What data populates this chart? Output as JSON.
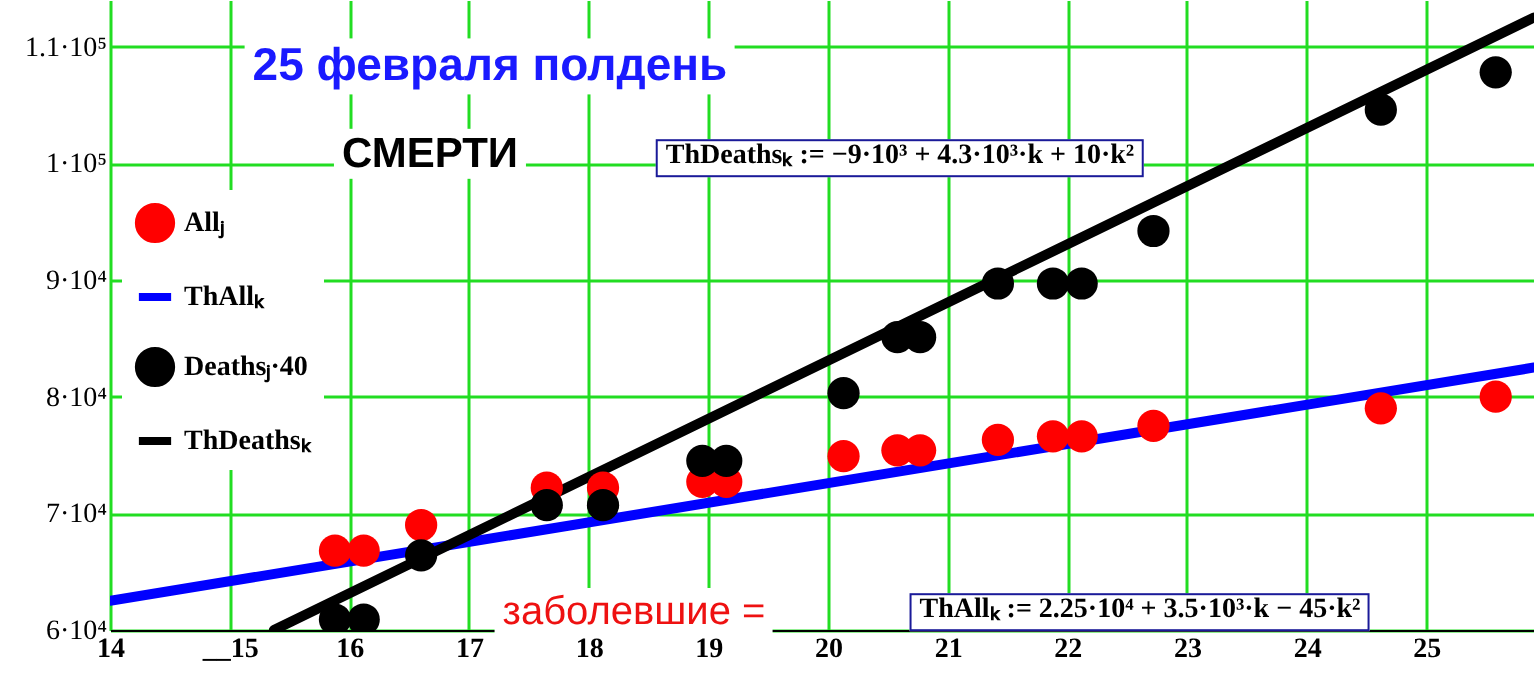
{
  "chart_data": {
    "type": "scatter",
    "title": "25 февраля полдень",
    "annotations": [
      "СМЕРТИ",
      "ThDeathsₖ := −9·10³ + 4.3·10³·k + 10·k²",
      "заболевшие =",
      "ThAllₖ := 2.25·10⁴ + 3.5·10³·k − 45·k²"
    ],
    "x": [
      15.88,
      16.12,
      16.6,
      17.65,
      18.12,
      18.95,
      19.15,
      20.13,
      20.58,
      20.77,
      21.42,
      21.88,
      22.12,
      22.72,
      24.62,
      25.58
    ],
    "series": [
      {
        "name": "Allⱼ",
        "marker": "circle",
        "color": "#ff0000",
        "values": [
          66800,
          66800,
          69000,
          72200,
          72200,
          72700,
          72700,
          74900,
          75400,
          75400,
          76300,
          76600,
          76600,
          77500,
          79000,
          80000
        ]
      },
      {
        "name": "ThAllₖ",
        "type": "line",
        "marker": "none",
        "color": "#0000ff",
        "x": [
          14,
          25.9
        ],
        "values": [
          62500,
          82500
        ]
      },
      {
        "name": "Deathsⱼ·40",
        "marker": "circle",
        "color": "#000000",
        "values": [
          60900,
          60900,
          66400,
          70700,
          70700,
          74500,
          74500,
          80300,
          85100,
          85100,
          89700,
          89700,
          89700,
          94200,
          104600,
          107800
        ]
      },
      {
        "name": "ThDeathsₖ",
        "type": "line",
        "marker": "none",
        "color": "#000000",
        "x": [
          15.37,
          25.9
        ],
        "values": [
          60000,
          112500
        ]
      }
    ],
    "xlim": [
      14,
      25.9
    ],
    "xticks": [
      14,
      {
        "value": 15,
        "label": "__15"
      },
      16,
      17,
      18,
      19,
      20,
      21,
      22,
      23,
      24,
      25
    ],
    "ylim": [
      60000,
      114000
    ],
    "yticks": [
      {
        "value": 60000,
        "label": "6·10⁴"
      },
      {
        "value": 70000,
        "label": "7·10⁴"
      },
      {
        "value": 80000,
        "label": "8·10⁴"
      },
      {
        "value": 90000,
        "label": "9·10⁴"
      },
      {
        "value": 100000,
        "label": "1·10⁵"
      },
      {
        "value": 110000,
        "label": "1.1·10⁵"
      }
    ],
    "grid": true,
    "legend": "left"
  }
}
